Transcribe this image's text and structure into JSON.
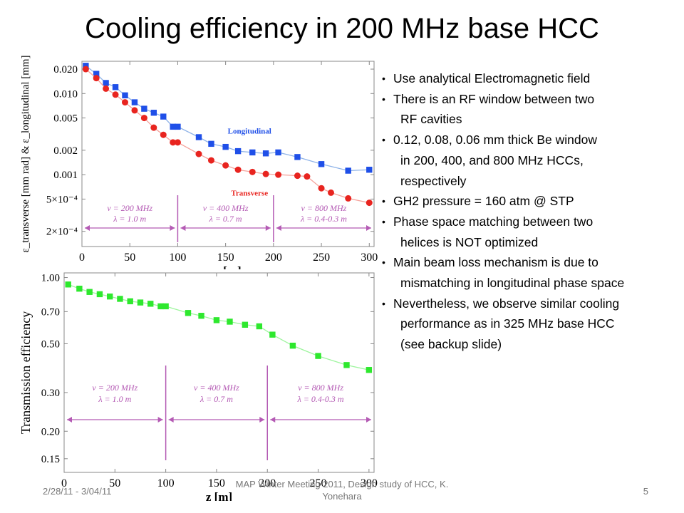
{
  "title": "Cooling efficiency in 200 MHz base HCC",
  "bullets": [
    {
      "lines": [
        "Use analytical Electromagnetic field"
      ]
    },
    {
      "lines": [
        "There is an RF window between two",
        "RF cavities"
      ]
    },
    {
      "lines": [
        "0.12, 0.08, 0.06 mm thick Be window",
        "in 200, 400, and 800 MHz HCCs,",
        "respectively"
      ]
    },
    {
      "lines": [
        "GH2 pressure = 160 atm @ STP"
      ]
    },
    {
      "lines": [
        "Phase space matching between two",
        "helices is NOT optimized"
      ]
    },
    {
      "lines": [
        "Main beam loss mechanism is due to",
        "mismatching in longitudinal phase space"
      ]
    },
    {
      "lines": [
        "Nevertheless, we observe similar cooling",
        "performance as in 325 MHz base HCC",
        "(see backup slide)"
      ]
    }
  ],
  "footer": {
    "date": "2/28/11 - 3/04/11",
    "meeting": "MAP Winter Meeting 2011, Design study of HCC, K. Yonehara",
    "page": "5"
  },
  "chart_data": [
    {
      "type": "line",
      "log_y": true,
      "xlabel": "z [m]",
      "ylabel": "ε_transverse [mm rad] & ε_longitudinal [mm]",
      "xlim": [
        0,
        305
      ],
      "ylim": [
        0.00013,
        0.025
      ],
      "x_ticks": [
        0,
        50,
        100,
        150,
        200,
        250,
        300
      ],
      "y_ticks": [
        {
          "value": 0.02,
          "label": "0.020"
        },
        {
          "value": 0.01,
          "label": "0.010"
        },
        {
          "value": 0.005,
          "label": "0.005"
        },
        {
          "value": 0.002,
          "label": "0.002"
        },
        {
          "value": 0.001,
          "label": "0.001"
        },
        {
          "value": 0.0005,
          "label": "5×10⁻⁴"
        },
        {
          "value": 0.0002,
          "label": "2×10⁻⁴"
        }
      ],
      "series": [
        {
          "name": "Longitudinal",
          "color": "#1f4fe8",
          "line_color": "#8fb3e8",
          "marker": "square",
          "x": [
            4,
            15,
            25,
            35,
            45,
            55,
            65,
            75,
            85,
            95,
            100,
            122,
            135,
            150,
            163,
            178,
            192,
            205,
            225,
            250,
            278,
            300
          ],
          "y": [
            0.022,
            0.0175,
            0.0135,
            0.012,
            0.0095,
            0.0078,
            0.0065,
            0.0058,
            0.0052,
            0.0039,
            0.0039,
            0.0029,
            0.0024,
            0.0022,
            0.00195,
            0.00188,
            0.00183,
            0.00188,
            0.00165,
            0.00135,
            0.00112,
            0.00115
          ]
        },
        {
          "name": "Transverse",
          "color": "#e8241f",
          "line_color": "#f5a39c",
          "marker": "circle",
          "x": [
            4,
            15,
            25,
            35,
            45,
            55,
            65,
            75,
            85,
            95,
            100,
            122,
            135,
            150,
            163,
            178,
            192,
            205,
            225,
            235,
            250,
            260,
            278,
            300
          ],
          "y": [
            0.02,
            0.0155,
            0.0115,
            0.0097,
            0.0078,
            0.0062,
            0.005,
            0.0038,
            0.0031,
            0.0025,
            0.0025,
            0.0018,
            0.0015,
            0.0013,
            0.00115,
            0.00108,
            0.00102,
            0.001,
            0.00097,
            0.00095,
            0.00068,
            0.0006,
            0.00051,
            0.00045
          ]
        }
      ],
      "regions": [
        {
          "x": [
            0,
            100
          ],
          "label1": "ν = 200 MHz",
          "label2": "λ = 1.0 m"
        },
        {
          "x": [
            100,
            200
          ],
          "label1": "ν = 400 MHz",
          "label2": "λ = 0.7 m"
        },
        {
          "x": [
            200,
            305
          ],
          "label1": "ν = 800 MHz",
          "label2": "λ = 0.4-0.3 m"
        }
      ]
    },
    {
      "type": "line",
      "log_y": true,
      "xlabel": "z [m]",
      "ylabel": "Transmission efficiency",
      "xlim": [
        0,
        305
      ],
      "ylim": [
        0.13,
        1.05
      ],
      "x_ticks": [
        0,
        50,
        100,
        150,
        200,
        250,
        300
      ],
      "y_ticks": [
        {
          "value": 1.0,
          "label": "1.00"
        },
        {
          "value": 0.7,
          "label": "0.70"
        },
        {
          "value": 0.5,
          "label": "0.50"
        },
        {
          "value": 0.3,
          "label": "0.30"
        },
        {
          "value": 0.2,
          "label": "0.20"
        },
        {
          "value": 0.15,
          "label": "0.15"
        }
      ],
      "series": [
        {
          "color": "#2ee82e",
          "line_color": "#9ef59e",
          "marker": "square",
          "x": [
            4,
            15,
            25,
            35,
            45,
            55,
            65,
            75,
            85,
            95,
            100,
            122,
            135,
            150,
            163,
            178,
            192,
            205,
            225,
            250,
            278,
            300
          ],
          "y": [
            0.93,
            0.89,
            0.86,
            0.84,
            0.82,
            0.8,
            0.78,
            0.77,
            0.76,
            0.74,
            0.74,
            0.69,
            0.67,
            0.64,
            0.63,
            0.61,
            0.6,
            0.55,
            0.49,
            0.44,
            0.4,
            0.38
          ]
        }
      ],
      "regions": [
        {
          "x": [
            0,
            100
          ],
          "label1": "ν = 200 MHz",
          "label2": "λ = 1.0 m"
        },
        {
          "x": [
            100,
            200
          ],
          "label1": "ν = 400 MHz",
          "label2": "λ = 0.7 m"
        },
        {
          "x": [
            200,
            305
          ],
          "label1": "ν = 800 MHz",
          "label2": "λ = 0.4-0.3 m"
        }
      ]
    }
  ]
}
